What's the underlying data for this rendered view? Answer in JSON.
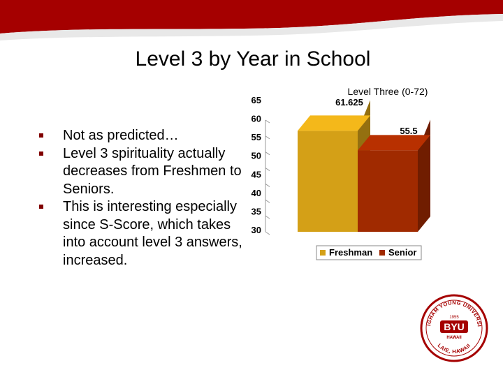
{
  "slide": {
    "title": "Level 3 by Year in School",
    "bullets": [
      "Not as predicted…",
      "Level 3 spirituality actually decreases from Freshmen to Seniors.",
      "This is interesting especially since S-Score, which takes into account level 3 answers, increased."
    ]
  },
  "colors": {
    "banner": "#a50000",
    "freshman_bar": "#d4a017",
    "senior_bar": "#a02a00"
  },
  "logo": {
    "text_top": "BRIGHAM YOUNG UNIVERSITY",
    "text_bottom": "LAIE, HAWAII",
    "year": "1955",
    "mark": "BYU",
    "sub": "HAWAII"
  },
  "chart_data": {
    "type": "bar",
    "title": "Level Three (0-72)",
    "categories": [
      "Freshman",
      "Senior"
    ],
    "values": [
      61.625,
      55.5
    ],
    "value_labels": [
      "61.625",
      "55.5"
    ],
    "ylim": [
      30,
      65
    ],
    "yticks": [
      30,
      35,
      40,
      45,
      50,
      55,
      60,
      65
    ],
    "xlabel": "",
    "ylabel": "",
    "grid": false,
    "style": "3d",
    "legend": {
      "position": "bottom",
      "entries": [
        "Freshman",
        "Senior"
      ]
    }
  }
}
